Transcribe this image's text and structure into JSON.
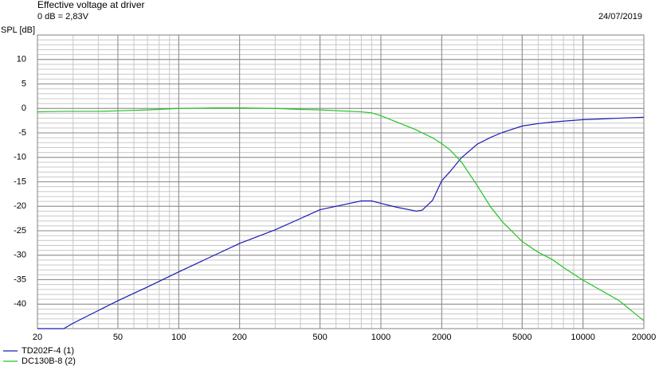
{
  "chart_data": {
    "type": "line",
    "title": "Effective voltage at driver",
    "subtitle": "0 dB = 2,83V",
    "date": "24/07/2019",
    "y_label": "SPL [dB]",
    "xscale": "log",
    "grid": true,
    "legend": "bottom-left",
    "xlim": [
      20,
      20000
    ],
    "xticks": [
      20,
      50,
      100,
      200,
      500,
      1000,
      2000,
      5000,
      10000,
      20000
    ],
    "ylim": [
      -45,
      15
    ],
    "yticks": [
      10,
      5,
      0,
      -5,
      -10,
      -15,
      -20,
      -25,
      -30,
      -35,
      -40
    ],
    "x": [
      20,
      27,
      30,
      40,
      50,
      70,
      100,
      150,
      200,
      300,
      400,
      500,
      800,
      900,
      1000,
      1200,
      1500,
      1600,
      1800,
      2000,
      2200,
      2500,
      3000,
      3500,
      4000,
      5000,
      6000,
      7000,
      8000,
      10000,
      15000,
      20000
    ],
    "series": [
      {
        "name": "TD202F-4 (1)",
        "color": "#1c1cb4",
        "values": [
          -45,
          -45,
          -43.9,
          -41.3,
          -39.3,
          -36.5,
          -33.4,
          -30,
          -27.6,
          -24.8,
          -22.5,
          -20.7,
          -18.9,
          -18.9,
          -19.4,
          -20.2,
          -21,
          -20.8,
          -18.8,
          -14.8,
          -12.9,
          -10.1,
          -7.3,
          -5.9,
          -4.9,
          -3.6,
          -3.1,
          -2.8,
          -2.6,
          -2.3,
          -2,
          -1.8
        ]
      },
      {
        "name": "DC130B-8 (2)",
        "color": "#22c422",
        "values": [
          -0.7,
          -0.6,
          -0.6,
          -0.6,
          -0.5,
          -0.3,
          0,
          0.1,
          0.1,
          0,
          -0.2,
          -0.3,
          -0.7,
          -0.9,
          -1.5,
          -2.8,
          -4.4,
          -5,
          -6,
          -7.2,
          -8.5,
          -10.9,
          -15.8,
          -20.2,
          -23.2,
          -27.2,
          -29.4,
          -30.8,
          -32.5,
          -35.1,
          -39.2,
          -43.4
        ]
      }
    ]
  }
}
